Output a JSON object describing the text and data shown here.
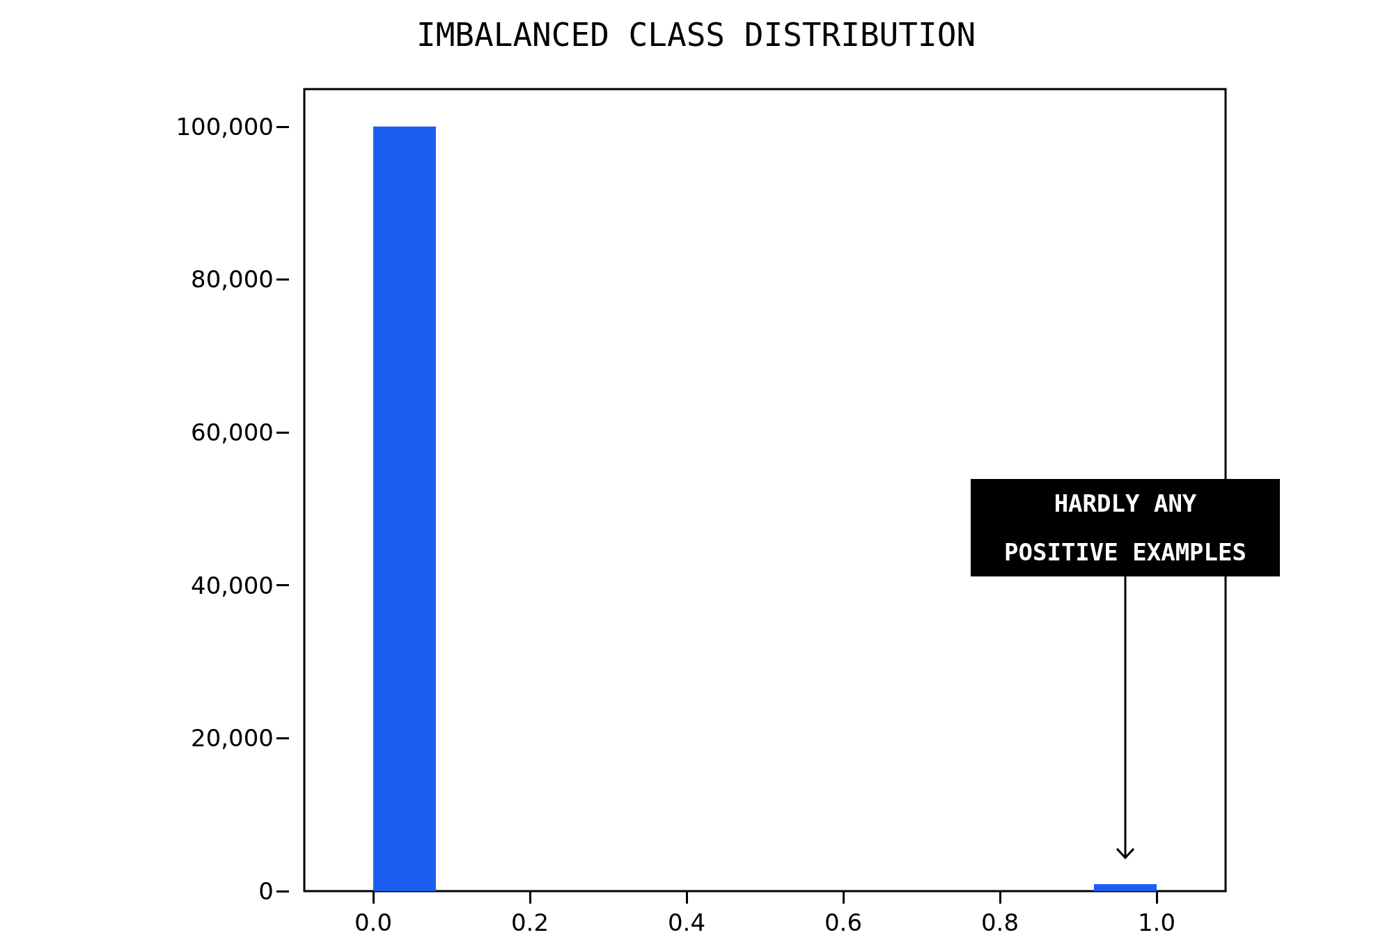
{
  "chart_data": {
    "type": "histogram",
    "title": "IMBALANCED CLASS DISTRIBUTION",
    "bins": [
      0,
      0.08,
      0.92,
      1.0
    ],
    "values": [
      100000,
      0,
      900
    ],
    "color": "#1c5ef0",
    "xlim": [
      -0.088,
      1.088
    ],
    "xticks": [
      {
        "value": 0,
        "label": "0.0"
      },
      0.2,
      0.4,
      0.6,
      0.8,
      {
        "value": 1,
        "label": "1.0"
      }
    ],
    "ylim": [
      0,
      104900
    ],
    "yticks": [
      {
        "value": 0,
        "label": "0"
      },
      {
        "value": 20000,
        "label": "20,000"
      },
      {
        "value": 40000,
        "label": "40,000"
      },
      {
        "value": 60000,
        "label": "60,000"
      },
      {
        "value": 80000,
        "label": "80,000"
      },
      {
        "value": 100000,
        "label": "100,000"
      }
    ],
    "grid": false,
    "annotations": [
      "HARDLY ANY POSITIVE EXAMPLES"
    ]
  }
}
